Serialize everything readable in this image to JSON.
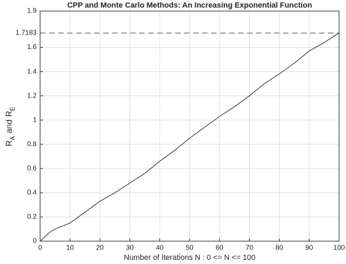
{
  "chart_data": {
    "type": "line",
    "title": "CPP and Monte Carlo Methods: An Increasing Exponential Function",
    "xlabel": "Number of Iterations N :  0 <= N <= 100",
    "ylabel": [
      {
        "text": "R"
      },
      {
        "text": "A",
        "sub": true
      },
      {
        "text": "and"
      },
      {
        "text": "R"
      },
      {
        "text": "E",
        "sub": true
      }
    ],
    "x": [
      0,
      3,
      5,
      10,
      15,
      20,
      25,
      30,
      35,
      40,
      45,
      50,
      55,
      60,
      65,
      70,
      75,
      80,
      85,
      90,
      95,
      100
    ],
    "series": [
      {
        "color": "#333333",
        "values": [
          0,
          0.07,
          0.1,
          0.15,
          0.24,
          0.33,
          0.4,
          0.48,
          0.56,
          0.66,
          0.75,
          0.85,
          0.94,
          1.03,
          1.11,
          1.2,
          1.3,
          1.38,
          1.47,
          1.57,
          1.64,
          1.72
        ]
      }
    ],
    "xlim": [
      0,
      100
    ],
    "xticks": [
      0,
      10,
      20,
      30,
      40,
      50,
      60,
      70,
      80,
      90,
      100
    ],
    "ylim": [
      0,
      1.9
    ],
    "yticks": [
      0,
      0.2,
      0.4,
      0.6,
      0.8,
      1,
      1.2,
      1.4,
      1.6,
      1.7183,
      1.9
    ],
    "hline": {
      "value": 1.7183,
      "color": "#777777",
      "dashed": true
    },
    "grid": true
  }
}
